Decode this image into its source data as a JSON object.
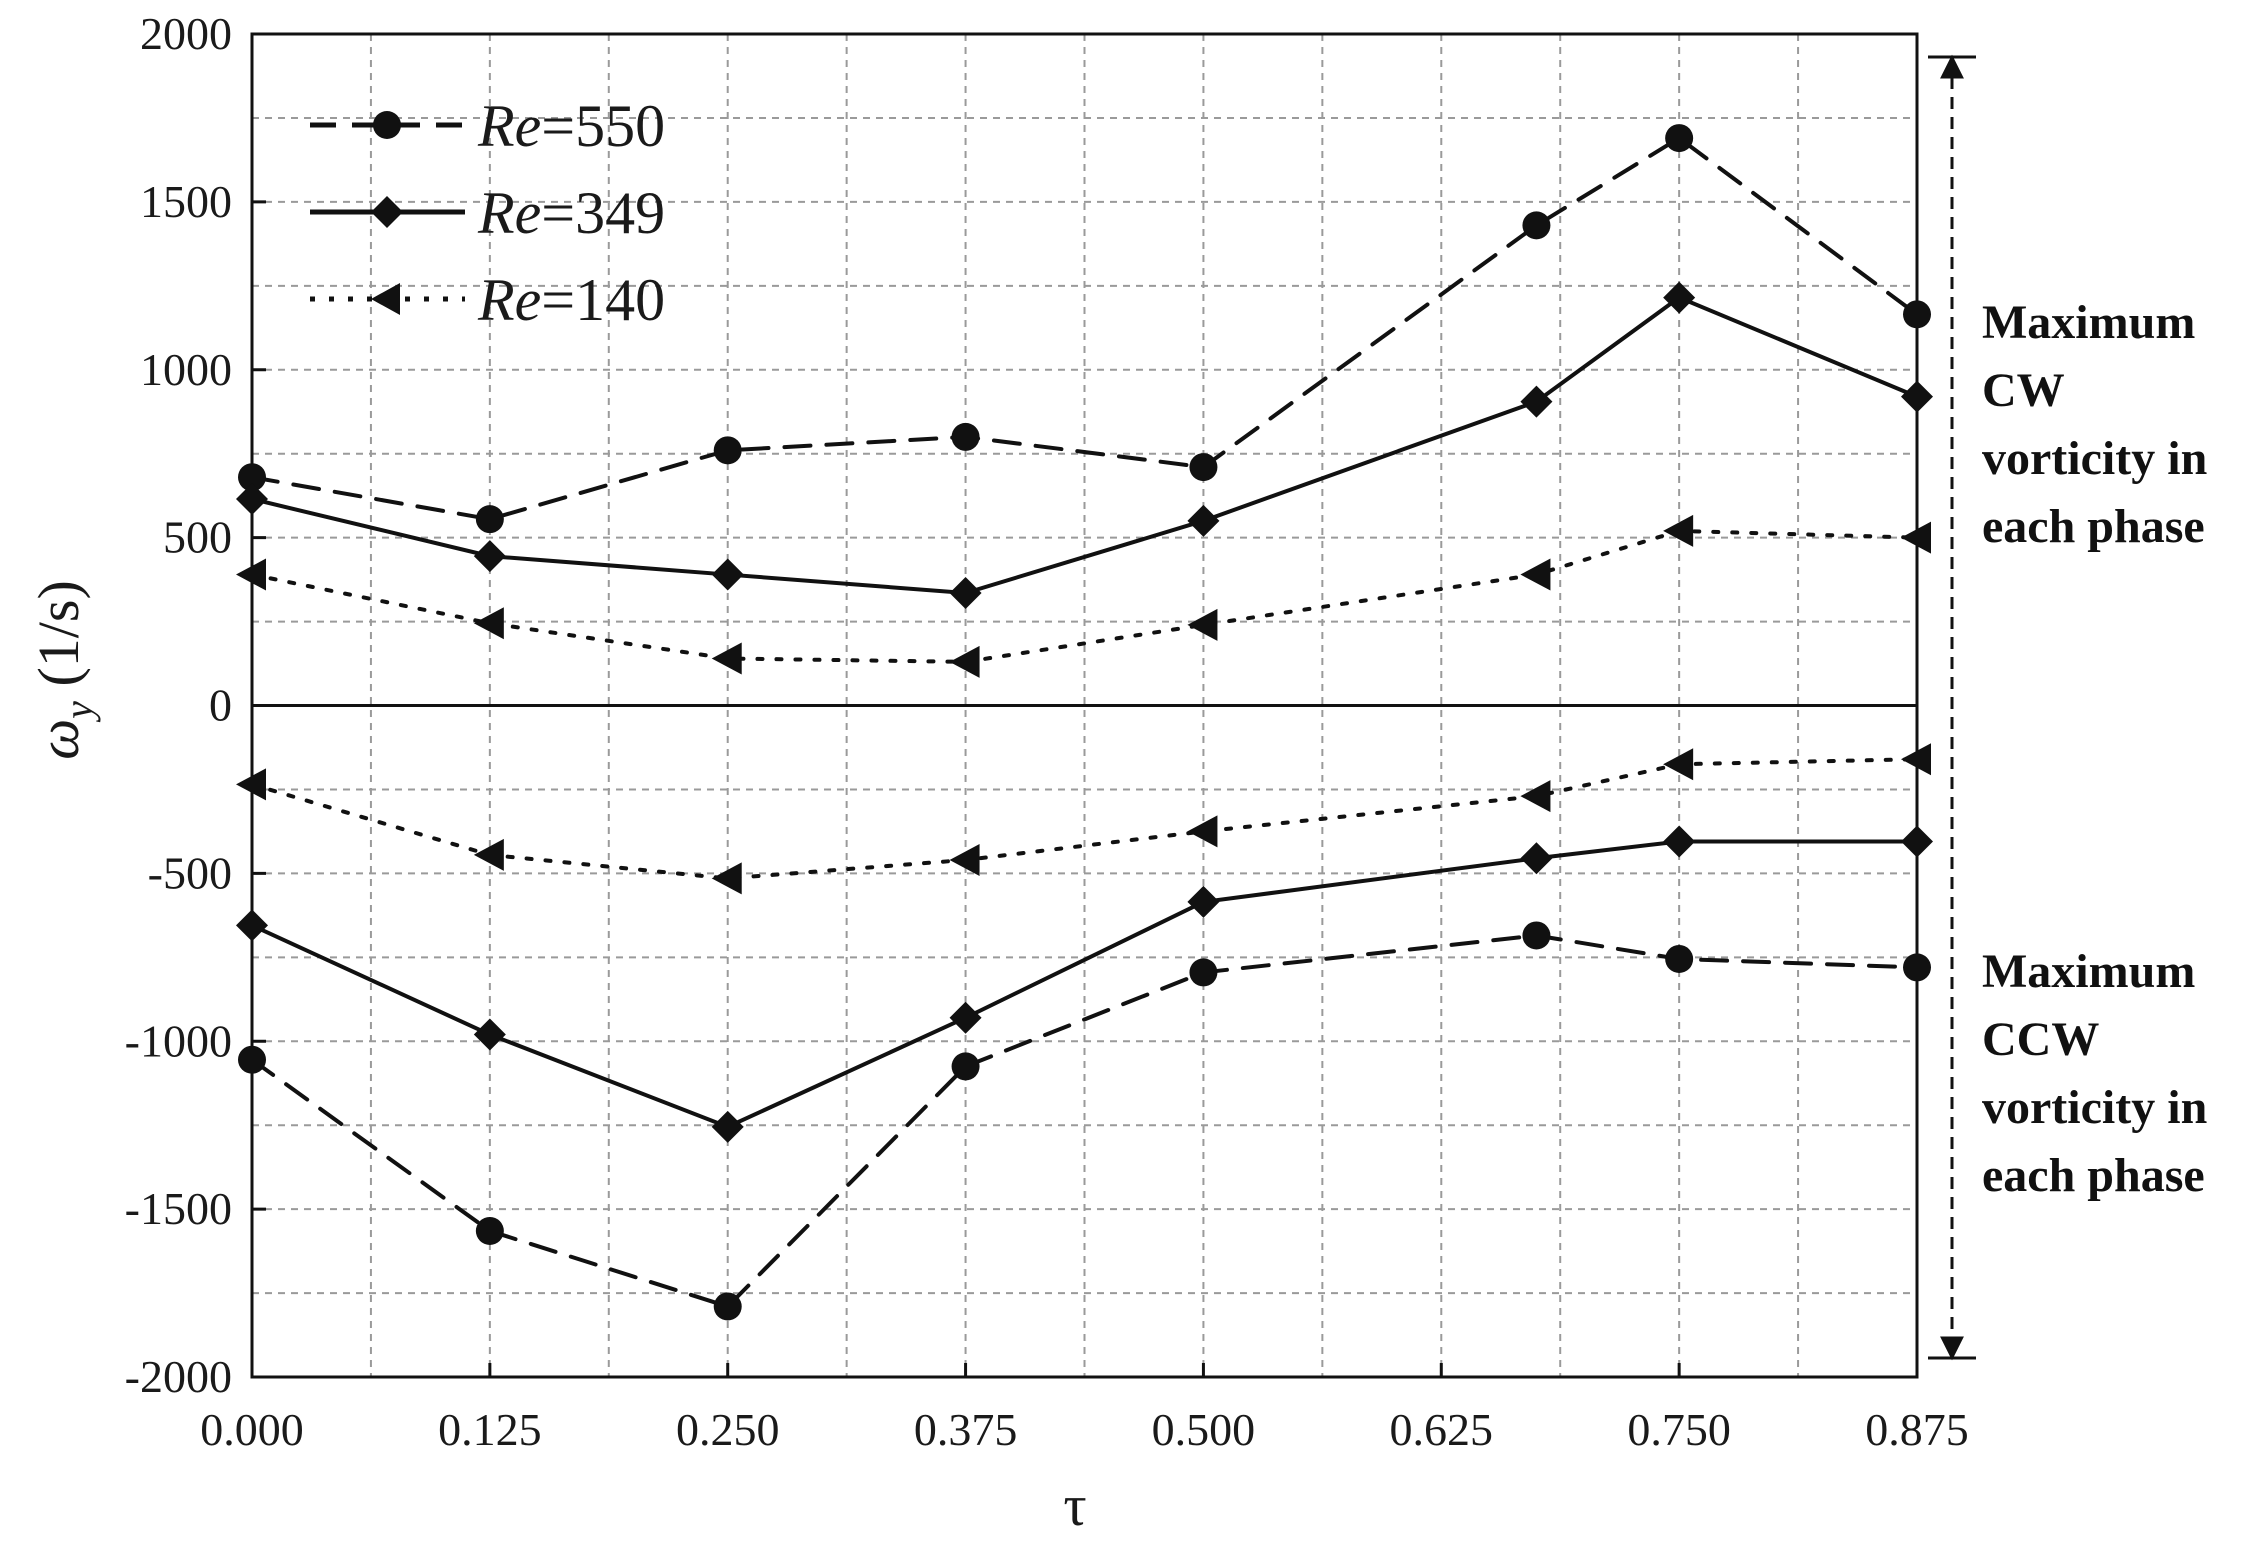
{
  "chart_data": {
    "type": "line",
    "title": "",
    "xlabel": "τ",
    "ylabel_symbol": "ω",
    "ylabel_subscript": "y",
    "ylabel_units": " (1/s)",
    "x": [
      0.0,
      0.125,
      0.25,
      0.375,
      0.5,
      0.675,
      0.75,
      0.875
    ],
    "xticks": [
      "0.000",
      "0.125",
      "0.250",
      "0.375",
      "0.500",
      "0.625",
      "0.750",
      "0.875"
    ],
    "xtick_values": [
      0.0,
      0.125,
      0.25,
      0.375,
      0.5,
      0.625,
      0.75,
      0.875
    ],
    "xlim": [
      0.0,
      0.875
    ],
    "yticks": [
      "-2000",
      "-1500",
      "-1000",
      "-500",
      "0",
      "500",
      "1000",
      "1500",
      "2000"
    ],
    "ytick_values": [
      -2000,
      -1500,
      -1000,
      -500,
      0,
      500,
      1000,
      1500,
      2000
    ],
    "ylim": [
      -2000,
      2000
    ],
    "grid": true,
    "legend_position": "top-left",
    "series": [
      {
        "name_italic": "Re",
        "name_rest": "=550",
        "style": "dashed",
        "marker": "circle",
        "values_cw": [
          680,
          555,
          760,
          800,
          710,
          1430,
          1690,
          1165
        ],
        "values_ccw": [
          -1055,
          -1565,
          -1790,
          -1075,
          -795,
          -685,
          -755,
          -780
        ]
      },
      {
        "name_italic": "Re",
        "name_rest": "=349",
        "style": "solid",
        "marker": "diamond",
        "values_cw": [
          615,
          445,
          390,
          335,
          550,
          905,
          1215,
          920
        ],
        "values_ccw": [
          -655,
          -980,
          -1255,
          -930,
          -585,
          -455,
          -405,
          -405
        ]
      },
      {
        "name_italic": "Re",
        "name_rest": "=140",
        "style": "dotted",
        "marker": "triangle-left",
        "values_cw": [
          390,
          245,
          140,
          130,
          240,
          390,
          520,
          500
        ],
        "values_ccw": [
          -235,
          -445,
          -515,
          -460,
          -375,
          -270,
          -175,
          -160
        ]
      }
    ],
    "annotations": {
      "cw": [
        "Maximum",
        "CW",
        "vorticity in",
        "each phase"
      ],
      "ccw": [
        "Maximum",
        "CCW",
        "vorticity in",
        "each phase"
      ]
    }
  }
}
